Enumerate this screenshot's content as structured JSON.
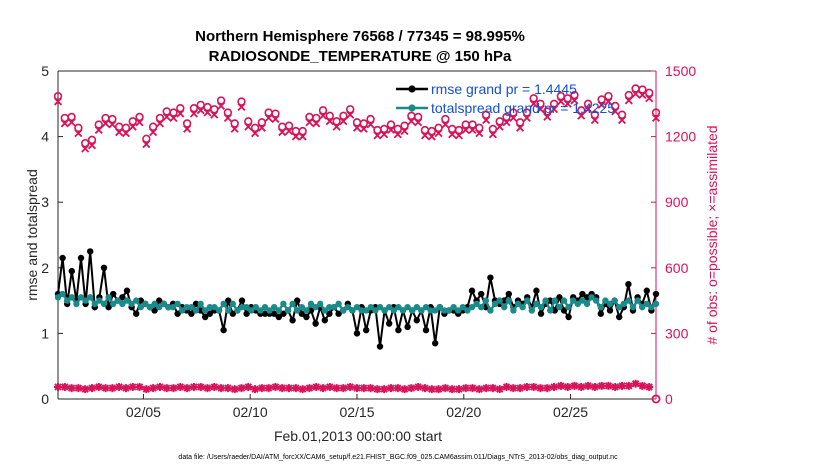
{
  "chart_data": {
    "type": "line",
    "title": [
      "Northern Hemisphere 76568 / 77345 = 98.995%",
      "RADIOSONDE_TEMPERATURE @ 150 hPa"
    ],
    "xlabel": "Feb.01,2013 00:00:00 start",
    "ylabel_left": "rmse and totalspread",
    "ylabel_right": "# of obs: o=possible; ×=assimilated",
    "footer": "data file: /Users/raeder/DAI/ATM_forcXX/CAM6_setup/f.e21.FHIST_BGC.f09_025.CAM6assim.011/Diags_NTrS_2013-02/obs_diag_output.nc",
    "xlim": [
      1,
      29
    ],
    "ylim_left": [
      0,
      5
    ],
    "ylim_right": [
      0,
      1500
    ],
    "x_ticks": [
      {
        "value": 5,
        "label": "02/05"
      },
      {
        "value": 10,
        "label": "02/10"
      },
      {
        "value": 15,
        "label": "02/15"
      },
      {
        "value": 20,
        "label": "02/20"
      },
      {
        "value": 25,
        "label": "02/25"
      }
    ],
    "y_ticks_left": [
      "0",
      "1",
      "2",
      "3",
      "4",
      "5"
    ],
    "y_ticks_right": [
      "0",
      "300",
      "600",
      "900",
      "1200",
      "1500"
    ],
    "legend": [
      "rmse grand pr = 1.4445",
      "totalspread grand pr = 1.4225"
    ],
    "colors": {
      "rmse": "#000000",
      "spread": "#1a8a8a",
      "obs": "#d6145a",
      "axis": "#262626",
      "legend_text": "#1450d2"
    },
    "rmse": [
      1.6,
      2.15,
      1.45,
      1.95,
      1.5,
      2.15,
      1.45,
      2.25,
      1.4,
      1.55,
      2.0,
      1.4,
      1.6,
      1.5,
      1.55,
      1.65,
      1.4,
      1.3,
      1.5,
      1.45,
      1.4,
      1.35,
      1.5,
      1.45,
      1.4,
      1.45,
      1.3,
      1.4,
      1.35,
      1.3,
      1.45,
      1.35,
      1.25,
      1.3,
      1.35,
      1.35,
      1.05,
      1.5,
      1.3,
      1.35,
      1.5,
      1.3,
      1.4,
      1.35,
      1.3,
      1.3,
      1.3,
      1.3,
      1.25,
      1.3,
      1.35,
      1.2,
      1.5,
      1.3,
      1.25,
      1.35,
      1.15,
      1.4,
      1.2,
      1.3,
      1.4,
      1.3,
      1.35,
      1.45,
      1.35,
      1.0,
      1.4,
      1.05,
      1.35,
      1.4,
      0.8,
      1.35,
      1.15,
      1.4,
      1.05,
      1.35,
      1.1,
      1.35,
      1.2,
      1.35,
      1.05,
      1.4,
      0.85,
      1.4,
      1.3,
      1.35,
      1.35,
      1.3,
      1.35,
      1.4,
      1.65,
      1.5,
      1.6,
      1.4,
      1.85,
      1.5,
      1.45,
      1.5,
      1.6,
      1.4,
      1.5,
      1.45,
      1.55,
      1.4,
      1.65,
      1.3,
      1.45,
      1.5,
      1.35,
      1.55,
      1.35,
      1.25,
      1.55,
      1.5,
      1.6,
      1.55,
      1.6,
      1.55,
      1.3,
      1.45,
      1.35,
      1.5,
      1.25,
      1.4,
      1.75,
      1.35,
      1.55,
      1.45,
      1.65,
      1.35,
      1.6
    ],
    "spread": [
      1.55,
      1.6,
      1.5,
      1.55,
      1.45,
      1.55,
      1.5,
      1.55,
      1.45,
      1.5,
      1.45,
      1.55,
      1.45,
      1.5,
      1.45,
      1.5,
      1.45,
      1.5,
      1.4,
      1.45,
      1.4,
      1.45,
      1.4,
      1.45,
      1.4,
      1.4,
      1.45,
      1.35,
      1.4,
      1.4,
      1.35,
      1.45,
      1.35,
      1.4,
      1.4,
      1.35,
      1.45,
      1.35,
      1.45,
      1.35,
      1.4,
      1.4,
      1.35,
      1.4,
      1.35,
      1.4,
      1.35,
      1.4,
      1.35,
      1.45,
      1.35,
      1.45,
      1.35,
      1.4,
      1.35,
      1.45,
      1.4,
      1.45,
      1.35,
      1.4,
      1.4,
      1.45,
      1.35,
      1.4,
      1.35,
      1.4,
      1.35,
      1.35,
      1.4,
      1.35,
      1.4,
      1.35,
      1.4,
      1.35,
      1.4,
      1.35,
      1.4,
      1.35,
      1.4,
      1.35,
      1.4,
      1.35,
      1.35,
      1.4,
      1.35,
      1.35,
      1.4,
      1.35,
      1.4,
      1.35,
      1.4,
      1.45,
      1.4,
      1.5,
      1.35,
      1.45,
      1.5,
      1.4,
      1.5,
      1.35,
      1.45,
      1.4,
      1.5,
      1.35,
      1.45,
      1.4,
      1.5,
      1.35,
      1.5,
      1.4,
      1.5,
      1.4,
      1.5,
      1.45,
      1.5,
      1.45,
      1.55,
      1.5,
      1.4,
      1.5,
      1.45,
      1.5,
      1.4,
      1.45,
      1.5,
      1.4,
      1.5,
      1.4,
      1.45,
      1.4,
      1.45
    ],
    "obs_possible": [
      1385,
      1285,
      1290,
      1240,
      1170,
      1185,
      1255,
      1285,
      1280,
      1245,
      1240,
      1270,
      1290,
      1190,
      1245,
      1285,
      1315,
      1310,
      1330,
      1260,
      1330,
      1345,
      1335,
      1325,
      1365,
      1310,
      1260,
      1360,
      1270,
      1240,
      1265,
      1310,
      1305,
      1245,
      1250,
      1225,
      1225,
      1290,
      1285,
      1320,
      1295,
      1270,
      1295,
      1325,
      1265,
      1260,
      1280,
      1230,
      1235,
      1255,
      1235,
      1250,
      1295,
      1290,
      1230,
      1225,
      1240,
      1280,
      1235,
      1230,
      1255,
      1255,
      1240,
      1300,
      1235,
      1270,
      1290,
      1310,
      1265,
      1310,
      1375,
      1350,
      1315,
      1350,
      1385,
      1375,
      1390,
      1320,
      1350,
      1300,
      1370,
      1385,
      1340,
      1300,
      1390,
      1420,
      1415,
      1400,
      1310
    ],
    "obs_assimilated": [
      55,
      55,
      50,
      50,
      45,
      50,
      55,
      50,
      50,
      55,
      50,
      55,
      55,
      45,
      50,
      55,
      50,
      50,
      55,
      50,
      55,
      55,
      50,
      55,
      50,
      50,
      45,
      50,
      55,
      45,
      50,
      50,
      55,
      50,
      50,
      50,
      45,
      50,
      55,
      50,
      55,
      50,
      50,
      55,
      50,
      50,
      50,
      45,
      45,
      50,
      50,
      45,
      50,
      55,
      50,
      45,
      45,
      50,
      45,
      45,
      50,
      50,
      45,
      50,
      50,
      45,
      55,
      50,
      50,
      55,
      55,
      50,
      50,
      55,
      60,
      55,
      60,
      55,
      60,
      55,
      60,
      60,
      55,
      60,
      60,
      70,
      60,
      55,
      0
    ]
  }
}
